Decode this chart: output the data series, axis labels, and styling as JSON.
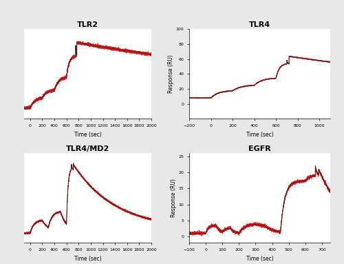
{
  "background_color": "#e8e8e8",
  "plot_bg_color": "#ffffff",
  "subplots": [
    {
      "title": "TLR2",
      "xlabel": "Time (sec)",
      "ylabel": "",
      "xlim": [
        -100,
        2000
      ],
      "ylim": [
        -3,
        30
      ],
      "xticks": [
        0,
        200,
        400,
        600,
        800,
        1000,
        1200,
        1400,
        1600,
        1800,
        2000
      ],
      "yticks": [],
      "has_ylabel": false
    },
    {
      "title": "TLR4",
      "xlabel": "Time (sec)",
      "ylabel": "Response (RU)",
      "xlim": [
        -200,
        1100
      ],
      "ylim": [
        -20,
        100
      ],
      "xticks": [
        -200,
        0,
        200,
        400,
        600,
        800,
        1000
      ],
      "yticks": [
        0,
        20,
        40,
        60,
        80,
        100
      ],
      "has_ylabel": true
    },
    {
      "title": "TLR4/MD2",
      "xlabel": "Time (sec)",
      "ylabel": "",
      "xlim": [
        -100,
        2000
      ],
      "ylim": [
        -5,
        50
      ],
      "xticks": [
        0,
        200,
        400,
        600,
        800,
        1000,
        1200,
        1400,
        1600,
        1800,
        2000
      ],
      "yticks": [],
      "has_ylabel": false
    },
    {
      "title": "EGFR",
      "xlabel": "Time (sec)",
      "ylabel": "Response (RU)",
      "xlim": [
        -100,
        750
      ],
      "ylim": [
        -2,
        26
      ],
      "xticks": [
        -100,
        0,
        100,
        200,
        300,
        400,
        500,
        600,
        700
      ],
      "yticks": [
        0,
        5,
        10,
        15,
        20,
        25
      ],
      "has_ylabel": true
    }
  ],
  "line_color_black": "#222222",
  "line_color_red": "#dd0000",
  "line_width": 0.7,
  "title_fontsize": 8,
  "tick_fontsize": 4.5,
  "axis_label_fontsize": 5.5
}
